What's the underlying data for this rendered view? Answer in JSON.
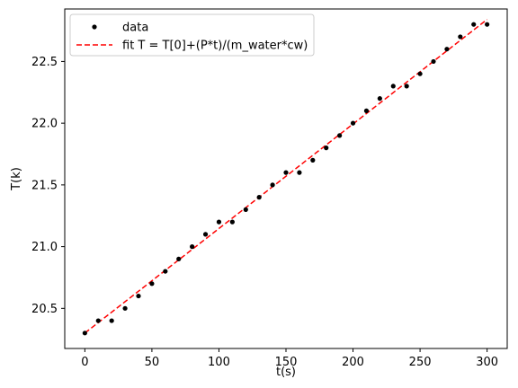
{
  "chart_data": {
    "type": "scatter",
    "xlabel": "t(s)",
    "ylabel": "T(k)",
    "xlim": [
      -15,
      315
    ],
    "ylim": [
      20.175,
      22.925
    ],
    "xticks": [
      0,
      50,
      100,
      150,
      200,
      250,
      300
    ],
    "yticks": [
      20.5,
      21.0,
      21.5,
      22.0,
      22.5
    ],
    "ytick_labels": [
      "20.5",
      "21.0",
      "21.5",
      "22.0",
      "22.5"
    ],
    "legend_location": "upper-left",
    "grid": false,
    "series": [
      {
        "name": "data",
        "kind": "points",
        "color": "#000000",
        "x": [
          0,
          10,
          20,
          30,
          40,
          50,
          60,
          70,
          80,
          90,
          100,
          110,
          120,
          130,
          140,
          150,
          160,
          170,
          180,
          190,
          200,
          210,
          220,
          230,
          240,
          250,
          260,
          270,
          280,
          290,
          300
        ],
        "y": [
          20.3,
          20.4,
          20.4,
          20.5,
          20.6,
          20.7,
          20.8,
          20.9,
          21.0,
          21.1,
          21.2,
          21.2,
          21.3,
          21.4,
          21.5,
          21.6,
          21.6,
          21.7,
          21.8,
          21.9,
          22.0,
          22.1,
          22.2,
          22.3,
          22.3,
          22.4,
          22.5,
          22.6,
          22.7,
          22.8,
          22.8
        ]
      },
      {
        "name": "fit T = T[0]+(P*t)/(m_water*cw)",
        "kind": "dashed-line",
        "color": "#ff0000",
        "x": [
          0,
          300
        ],
        "y": [
          20.3,
          22.84
        ]
      }
    ]
  }
}
